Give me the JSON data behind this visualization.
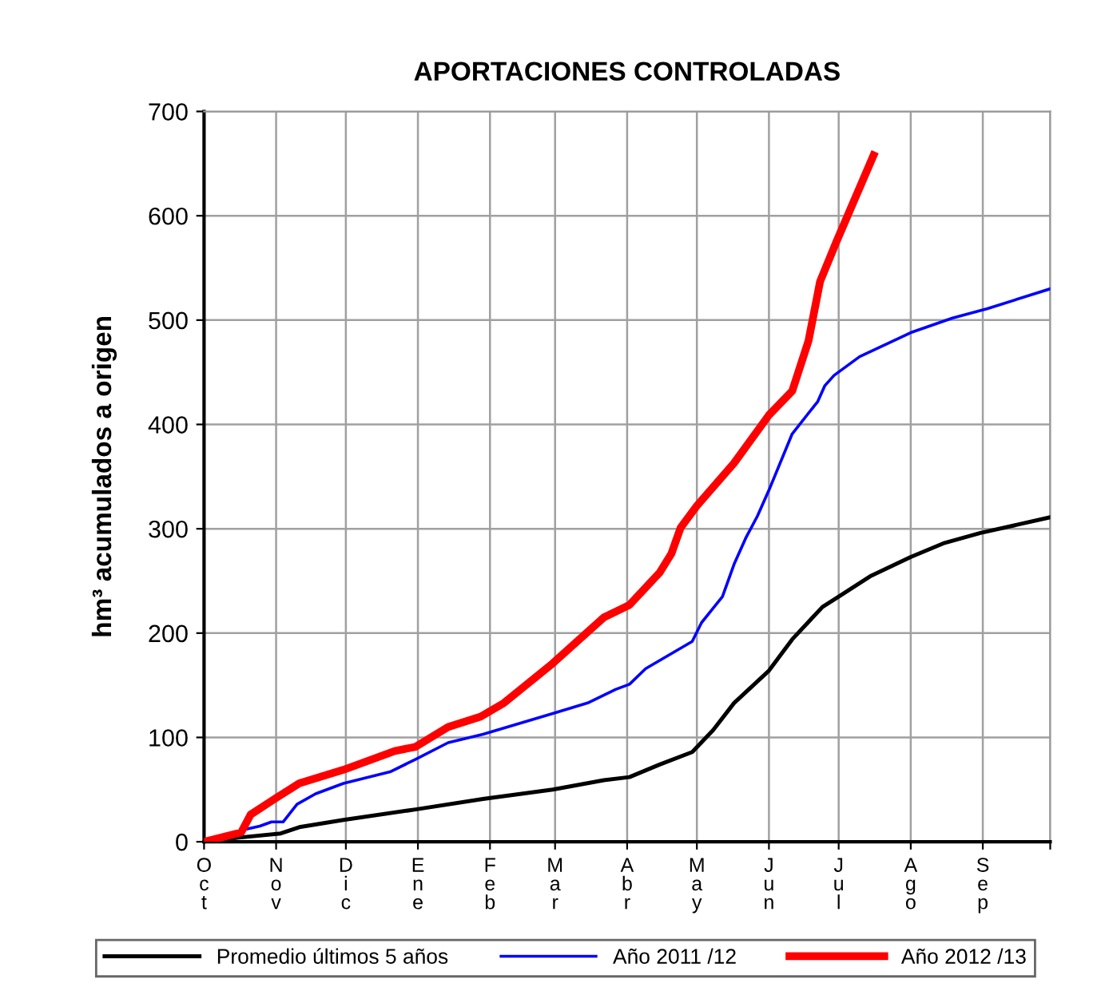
{
  "chart_data": {
    "type": "line",
    "title": "APORTACIONES CONTROLADAS",
    "ylabel": "hm³ acumulados a origen",
    "xlim": [
      "2012-10-01",
      "2013-09-30"
    ],
    "xticks": [
      {
        "value": "2012-10-01",
        "label": "Oct"
      },
      {
        "value": "2012-11-01",
        "label": "Nov"
      },
      {
        "value": "2012-12-01",
        "label": "Dic"
      },
      {
        "value": "2013-01-01",
        "label": "Ene"
      },
      {
        "value": "2013-02-01",
        "label": "Feb"
      },
      {
        "value": "2013-03-01",
        "label": "Mar"
      },
      {
        "value": "2013-04-01",
        "label": "Abr"
      },
      {
        "value": "2013-05-01",
        "label": "May"
      },
      {
        "value": "2013-06-01",
        "label": "Jun"
      },
      {
        "value": "2013-07-01",
        "label": "Jul"
      },
      {
        "value": "2013-08-01",
        "label": "Ago"
      },
      {
        "value": "2013-09-01",
        "label": "Sep"
      },
      {
        "value": "2013-09-30",
        "label": null
      }
    ],
    "ylim": [
      0,
      700
    ],
    "yticks": [
      0,
      100,
      200,
      300,
      400,
      500,
      600,
      700
    ],
    "grid": true,
    "legend": "bottom",
    "line_style": "solid",
    "marker": "none",
    "series": [
      {
        "name": "Promedio últimos 5 años",
        "color": "#000000",
        "x": [
          "2012-10-01",
          "2012-10-16",
          "2012-11-03",
          "2012-11-11",
          "2012-11-30",
          "2012-12-31",
          "2013-01-29",
          "2013-02-28",
          "2013-03-22",
          "2013-04-02",
          "2013-04-15",
          "2013-04-29",
          "2013-05-08",
          "2013-05-17",
          "2013-06-01",
          "2013-06-11",
          "2013-06-24",
          "2013-07-01",
          "2013-07-15",
          "2013-08-01",
          "2013-08-15",
          "2013-08-31",
          "2013-09-30"
        ],
        "values": [
          0,
          4,
          8,
          14,
          21,
          31,
          41,
          50,
          59,
          62,
          74,
          86,
          107,
          133,
          164,
          194,
          225,
          235,
          255,
          273,
          286,
          296,
          311
        ]
      },
      {
        "name": "Año 2011 /12",
        "color": "#0000ff",
        "x": [
          "2012-10-01",
          "2012-10-17",
          "2012-10-25",
          "2012-10-30",
          "2012-11-04",
          "2012-11-10",
          "2012-11-18",
          "2012-11-30",
          "2012-12-20",
          "2012-12-31",
          "2013-01-14",
          "2013-01-29",
          "2013-02-28",
          "2013-03-15",
          "2013-03-27",
          "2013-04-02",
          "2013-04-09",
          "2013-04-29",
          "2013-05-03",
          "2013-05-12",
          "2013-05-17",
          "2013-05-22",
          "2013-05-27",
          "2013-06-01",
          "2013-06-11",
          "2013-06-22",
          "2013-06-25",
          "2013-06-29",
          "2013-07-10",
          "2013-08-01",
          "2013-08-19",
          "2013-09-03",
          "2013-09-30"
        ],
        "values": [
          0,
          11,
          15,
          19,
          19,
          36,
          46,
          56,
          67,
          79,
          95,
          103,
          123,
          133,
          146,
          151,
          166,
          192,
          210,
          235,
          266,
          291,
          312,
          337,
          391,
          422,
          437,
          447,
          465,
          488,
          502,
          511,
          530
        ]
      },
      {
        "name": "Año 2012 /13",
        "color": "#ff0000",
        "x": [
          "2012-10-01",
          "2012-10-17",
          "2012-10-21",
          "2012-11-01",
          "2012-11-11",
          "2012-11-30",
          "2012-12-22",
          "2012-12-31",
          "2013-01-14",
          "2013-01-28",
          "2013-02-07",
          "2013-02-28",
          "2013-03-22",
          "2013-04-02",
          "2013-04-15",
          "2013-04-20",
          "2013-04-24",
          "2013-05-01",
          "2013-05-17",
          "2013-06-01",
          "2013-06-11",
          "2013-06-18",
          "2013-06-23",
          "2013-06-30",
          "2013-07-16"
        ],
        "values": [
          0,
          9,
          26,
          42,
          56,
          69,
          87,
          91,
          110,
          120,
          133,
          171,
          215,
          227,
          258,
          276,
          301,
          322,
          363,
          409,
          432,
          480,
          537,
          575,
          658
        ]
      }
    ]
  }
}
